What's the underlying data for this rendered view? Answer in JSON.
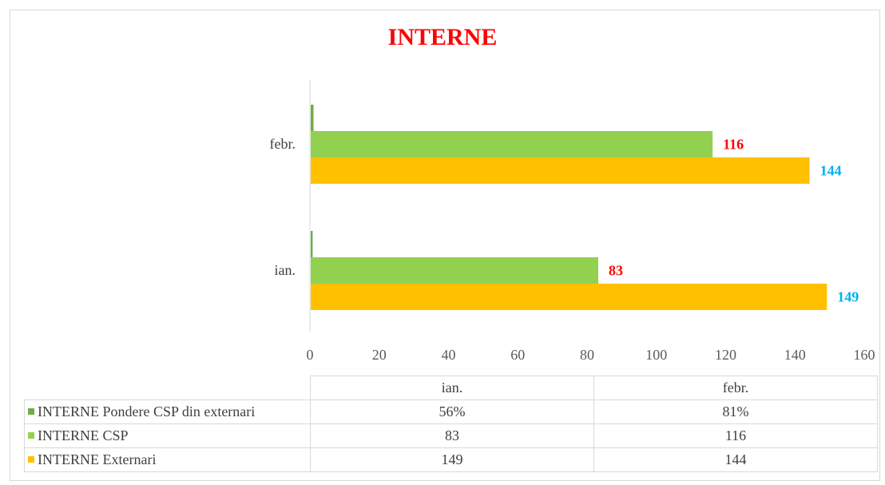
{
  "chart_data": {
    "type": "bar",
    "orientation": "horizontal",
    "title": "INTERNE",
    "categories": [
      "ian.",
      "febr."
    ],
    "series": [
      {
        "name": "INTERNE Pondere CSP din externari",
        "values": [
          0.56,
          0.81
        ],
        "display": [
          "56%",
          "81%"
        ],
        "color": "#70ad47"
      },
      {
        "name": "INTERNE CSP",
        "values": [
          83,
          116
        ],
        "display": [
          "83",
          "116"
        ],
        "color": "#92d050"
      },
      {
        "name": "INTERNE Externari",
        "values": [
          149,
          144
        ],
        "display": [
          "149",
          "144"
        ],
        "color": "#ffc000"
      }
    ],
    "data_labels": {
      "INTERNE CSP": {
        "values": [
          "83",
          "116"
        ],
        "color": "#ff0000"
      },
      "INTERNE Externari": {
        "values": [
          "149",
          "144"
        ],
        "color": "#00b0f0"
      }
    },
    "xlim": [
      0,
      160
    ],
    "xticks": [
      "0",
      "20",
      "40",
      "60",
      "80",
      "100",
      "120",
      "140",
      "160"
    ],
    "xlabel": "",
    "ylabel": "",
    "grid": false,
    "legend": "data table below chart",
    "title_color": "#ff0000"
  }
}
